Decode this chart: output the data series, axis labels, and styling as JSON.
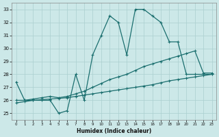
{
  "xlabel": "Humidex (Indice chaleur)",
  "bg_color": "#cce8e8",
  "line_color": "#1a6e6e",
  "grid_color": "#aacfcf",
  "xlim": [
    -0.5,
    23.5
  ],
  "ylim": [
    24.5,
    33.5
  ],
  "yticks": [
    25,
    26,
    27,
    28,
    29,
    30,
    31,
    32,
    33
  ],
  "xticks": [
    0,
    1,
    2,
    3,
    4,
    5,
    6,
    7,
    8,
    9,
    10,
    11,
    12,
    13,
    14,
    15,
    16,
    17,
    18,
    19,
    20,
    21,
    22,
    23
  ],
  "line1_x": [
    0,
    1,
    2,
    3,
    4,
    5,
    6,
    7,
    8,
    9,
    10,
    11,
    12,
    13,
    14,
    15,
    16,
    17,
    18,
    19,
    20,
    21,
    22,
    23
  ],
  "line1_y": [
    27.4,
    26.0,
    26.0,
    26.0,
    26.0,
    25.0,
    25.2,
    28.0,
    26.0,
    29.5,
    31.0,
    32.5,
    32.0,
    29.5,
    33.0,
    33.0,
    32.5,
    32.0,
    30.5,
    30.5,
    28.0,
    28.0,
    28.0,
    28.0
  ],
  "line2_x": [
    0,
    1,
    2,
    3,
    4,
    5,
    6,
    7,
    8,
    9,
    10,
    11,
    12,
    13,
    14,
    15,
    16,
    17,
    18,
    19,
    20,
    21,
    22,
    23
  ],
  "line2_y": [
    26.0,
    26.0,
    26.1,
    26.2,
    26.3,
    26.2,
    26.3,
    26.5,
    26.7,
    27.0,
    27.3,
    27.6,
    27.8,
    28.0,
    28.3,
    28.6,
    28.8,
    29.0,
    29.2,
    29.4,
    29.6,
    29.8,
    28.1,
    28.1
  ],
  "line3_x": [
    0,
    1,
    2,
    3,
    4,
    5,
    6,
    7,
    8,
    9,
    10,
    11,
    12,
    13,
    14,
    15,
    16,
    17,
    18,
    19,
    20,
    21,
    22,
    23
  ],
  "line3_y": [
    25.8,
    25.9,
    26.0,
    26.05,
    26.1,
    26.15,
    26.2,
    26.3,
    26.4,
    26.5,
    26.6,
    26.7,
    26.8,
    26.9,
    27.0,
    27.1,
    27.2,
    27.35,
    27.5,
    27.6,
    27.7,
    27.8,
    27.9,
    28.0
  ]
}
